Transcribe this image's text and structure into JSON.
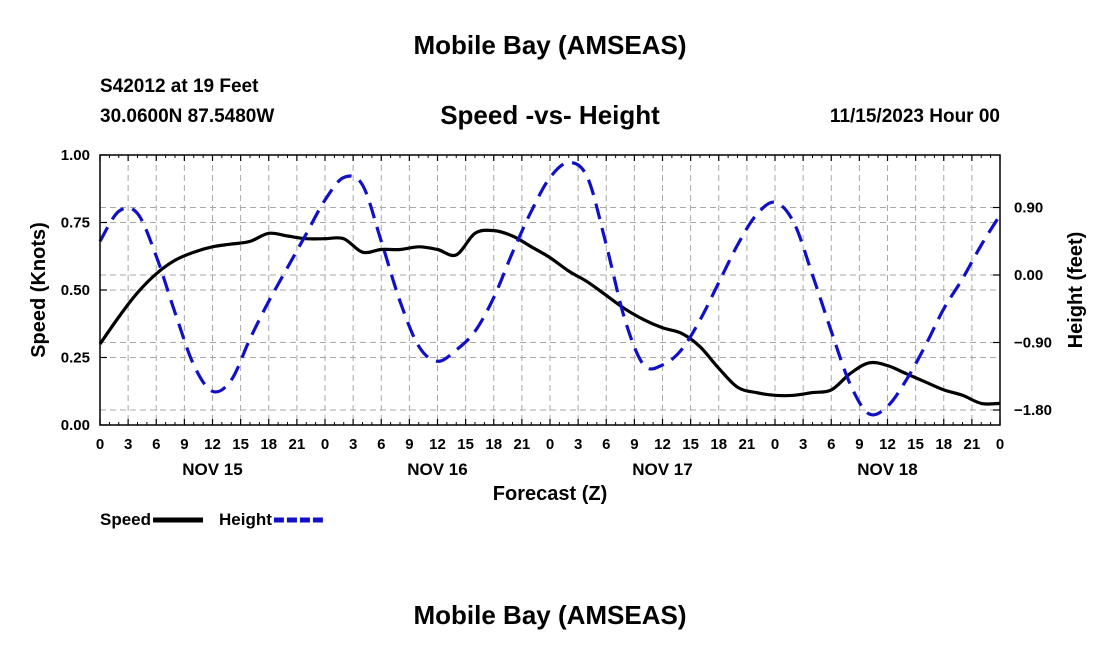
{
  "main_title": "Mobile Bay (AMSEAS)",
  "station": "S42012 at 19 Feet",
  "coords": "30.0600N  87.5480W",
  "datetime": "11/15/2023 Hour 00",
  "footer_title": "Mobile Bay (AMSEAS)",
  "chart_data": {
    "type": "line",
    "title": "Speed -vs- Height",
    "xlabel": "Forecast (Z)",
    "ylabel": "Speed (Knots)",
    "y2label": "Height (feet)",
    "x_range_hours": [
      0,
      96
    ],
    "x_tick_step_hours": 3,
    "x_tick_labels": [
      "0",
      "3",
      "6",
      "9",
      "12",
      "15",
      "18",
      "21",
      "0",
      "3",
      "6",
      "9",
      "12",
      "15",
      "18",
      "21",
      "0",
      "3",
      "6",
      "9",
      "12",
      "15",
      "18",
      "21",
      "0",
      "3",
      "6",
      "9",
      "12",
      "15",
      "18",
      "21",
      "0"
    ],
    "day_labels": [
      {
        "hour": 12,
        "label": "NOV 15"
      },
      {
        "hour": 36,
        "label": "NOV 16"
      },
      {
        "hour": 60,
        "label": "NOV 17"
      },
      {
        "hour": 84,
        "label": "NOV 18"
      }
    ],
    "ylim": [
      0,
      1.0
    ],
    "yticks": [
      0.0,
      0.25,
      0.5,
      0.75,
      1.0
    ],
    "ytick_labels": [
      "0.00",
      "0.25",
      "0.50",
      "0.75",
      "1.00"
    ],
    "y2lim": [
      -2.0,
      1.6
    ],
    "y2ticks": [
      -1.8,
      -0.9,
      0.0,
      0.9
    ],
    "y2tick_labels": [
      "−1.80",
      "−0.90",
      "0.00",
      "0.90"
    ],
    "series": [
      {
        "name": "Speed",
        "axis": "left",
        "color": "#000000",
        "dash": "solid",
        "x": [
          0,
          2,
          4,
          6,
          8,
          10,
          12,
          14,
          16,
          18,
          20,
          22,
          24,
          26,
          28,
          30,
          32,
          34,
          36,
          38,
          40,
          42,
          44,
          46,
          48,
          50,
          52,
          54,
          56,
          58,
          60,
          62,
          64,
          66,
          68,
          70,
          72,
          74,
          76,
          78,
          80,
          82,
          84,
          86,
          88,
          90,
          92,
          94,
          96
        ],
        "y": [
          0.3,
          0.4,
          0.49,
          0.56,
          0.61,
          0.64,
          0.66,
          0.67,
          0.68,
          0.71,
          0.7,
          0.69,
          0.69,
          0.69,
          0.64,
          0.65,
          0.65,
          0.66,
          0.65,
          0.63,
          0.71,
          0.72,
          0.7,
          0.66,
          0.62,
          0.57,
          0.53,
          0.48,
          0.43,
          0.39,
          0.36,
          0.34,
          0.29,
          0.21,
          0.14,
          0.12,
          0.11,
          0.11,
          0.12,
          0.13,
          0.19,
          0.23,
          0.22,
          0.19,
          0.16,
          0.13,
          0.11,
          0.08,
          0.08
        ]
      },
      {
        "name": "Height",
        "axis": "right",
        "color": "#1010c8",
        "dash": "dashed",
        "x": [
          0,
          2,
          4,
          6,
          8,
          10,
          12,
          14,
          16,
          18,
          20,
          22,
          24,
          26,
          28,
          30,
          32,
          34,
          36,
          38,
          40,
          42,
          44,
          46,
          48,
          50,
          52,
          54,
          56,
          58,
          60,
          62,
          64,
          66,
          68,
          70,
          72,
          74,
          76,
          78,
          80,
          82,
          84,
          86,
          88,
          90,
          92,
          94,
          96
        ],
        "y": [
          0.45,
          0.85,
          0.82,
          0.25,
          -0.5,
          -1.2,
          -1.55,
          -1.4,
          -0.85,
          -0.35,
          0.1,
          0.55,
          1.0,
          1.3,
          1.2,
          0.45,
          -0.35,
          -0.95,
          -1.15,
          -1.0,
          -0.75,
          -0.3,
          0.3,
          0.85,
          1.3,
          1.5,
          1.3,
          0.4,
          -0.6,
          -1.2,
          -1.2,
          -1.0,
          -0.6,
          -0.1,
          0.4,
          0.8,
          0.97,
          0.7,
          0.0,
          -0.75,
          -1.45,
          -1.85,
          -1.75,
          -1.4,
          -0.95,
          -0.45,
          -0.05,
          0.4,
          0.8
        ]
      }
    ],
    "legend": {
      "placement": "bottom-left",
      "items": [
        {
          "label": "Speed",
          "color": "#000000",
          "dash": "solid"
        },
        {
          "label": "Height",
          "color": "#1010c8",
          "dash": "dashed"
        }
      ]
    },
    "grid": true
  }
}
